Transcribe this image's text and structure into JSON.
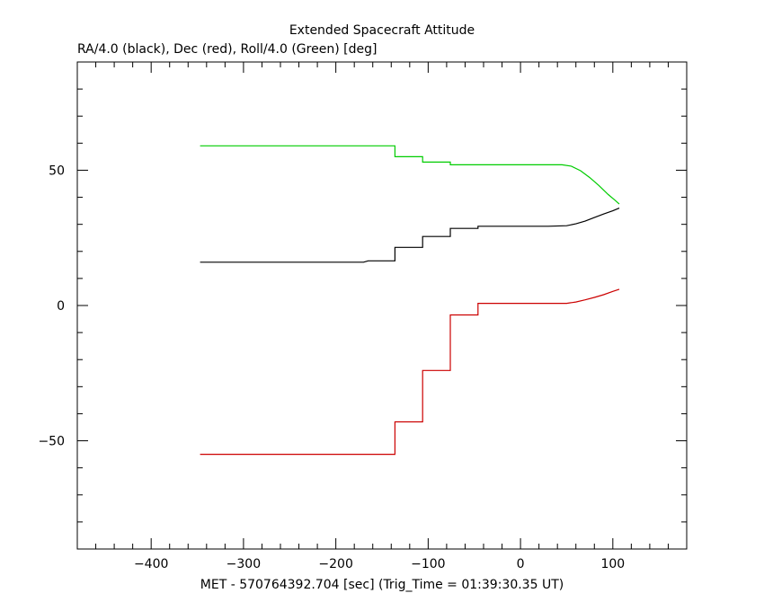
{
  "chart_data": {
    "type": "line",
    "title": "Extended Spacecraft Attitude",
    "subtitle": "RA/4.0 (black), Dec (red), Roll/4.0 (Green) [deg]",
    "xlabel": "MET - 570764392.704 [sec] (Trig_Time = 01:39:30.35 UT)",
    "ylabel": "",
    "xlim": [
      -480,
      180
    ],
    "ylim": [
      -90,
      90
    ],
    "x_ticks": [
      -400,
      -300,
      -200,
      -100,
      0,
      100
    ],
    "x_tick_labels": [
      "−400",
      "−300",
      "−200",
      "−100",
      "0",
      "100"
    ],
    "y_ticks": [
      -50,
      0,
      50
    ],
    "y_tick_labels": [
      "−50",
      "0",
      "50"
    ],
    "grid": false,
    "legend": "none",
    "series": [
      {
        "color": "#000000",
        "x": [
          -347,
          -170,
          -165,
          -136,
          -136,
          -106,
          -106,
          -76,
          -76,
          -46,
          -46,
          30,
          50,
          60,
          70,
          80,
          90,
          100,
          107
        ],
        "y": [
          16,
          16,
          16.5,
          16.5,
          21.5,
          21.5,
          25.5,
          25.5,
          28.5,
          28.5,
          29.3,
          29.3,
          29.5,
          30.2,
          31.2,
          32.5,
          33.8,
          35,
          36
        ]
      },
      {
        "color": "#cc0000",
        "x": [
          -347,
          -136,
          -136,
          -106,
          -106,
          -76,
          -76,
          -46,
          -46,
          50,
          60,
          70,
          80,
          90,
          100,
          107
        ],
        "y": [
          -55,
          -55,
          -43,
          -43,
          -24,
          -24,
          -3.5,
          -3.5,
          0.8,
          0.8,
          1.3,
          2.1,
          3,
          4,
          5.2,
          6
        ]
      },
      {
        "color": "#00cc00",
        "x": [
          -347,
          -136,
          -136,
          -106,
          -106,
          -76,
          -76,
          45,
          55,
          65,
          75,
          85,
          95,
          102,
          107
        ],
        "y": [
          59,
          59,
          55,
          55,
          53,
          53,
          52,
          52,
          51.5,
          49.8,
          47.3,
          44.3,
          41,
          39,
          37.5
        ]
      }
    ]
  }
}
